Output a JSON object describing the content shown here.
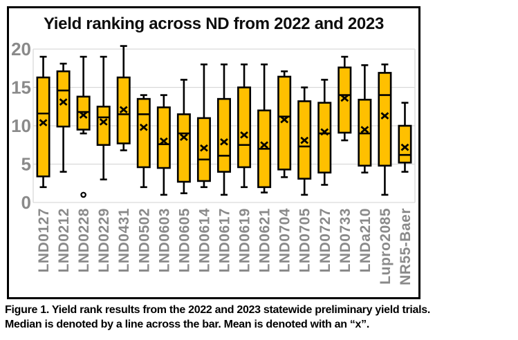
{
  "figure": {
    "caption_line1": "Figure 1. Yield rank results from the 2022 and 2023 statewide preliminary yield trials.",
    "caption_line2": "Median is denoted by a line across the bar. Mean is denoted with an “x”."
  },
  "chart_data": {
    "type": "boxplot",
    "title": "Yield ranking across ND from 2022 and 2023",
    "xlabel": "",
    "ylabel": "",
    "ylim": [
      0,
      20
    ],
    "yticks": [
      0,
      5,
      10,
      15,
      20
    ],
    "grid": true,
    "legend": "none",
    "colors": {
      "box_fill": "#FFC000",
      "box_stroke": "#000000",
      "grid": "#D9D9D9",
      "tick_label": "#8A8A8A",
      "title": "#0D0D0D"
    },
    "categories": [
      "LND0127",
      "LND0212",
      "LND0228",
      "LND0229",
      "LND0431",
      "LND0502",
      "LND0603",
      "LND0605",
      "LND0614",
      "LND0617",
      "LND0619",
      "LND0621",
      "LND0704",
      "LND0705",
      "LND0727",
      "LND0733",
      "LNDa210",
      "Lupro2085",
      "NR55-Baer"
    ],
    "series": [
      {
        "name": "LND0127",
        "whisker_low": 2.0,
        "q1": 3.4,
        "median": 11.6,
        "mean": 10.4,
        "q3": 16.3,
        "whisker_high": 19.0,
        "outliers": []
      },
      {
        "name": "LND0212",
        "whisker_low": 4.0,
        "q1": 9.9,
        "median": 14.6,
        "mean": 13.1,
        "q3": 17.1,
        "whisker_high": 18.1,
        "outliers": []
      },
      {
        "name": "LND0228",
        "whisker_low": 9.0,
        "q1": 9.5,
        "median": 11.8,
        "mean": 11.4,
        "q3": 13.8,
        "whisker_high": 19.0,
        "outliers": [
          1.0
        ]
      },
      {
        "name": "LND0229",
        "whisker_low": 3.0,
        "q1": 7.5,
        "median": 11.1,
        "mean": 10.5,
        "q3": 12.5,
        "whisker_high": 19.0,
        "outliers": []
      },
      {
        "name": "LND0431",
        "whisker_low": 6.8,
        "q1": 7.7,
        "median": 11.5,
        "mean": 12.1,
        "q3": 16.3,
        "whisker_high": 20.4,
        "outliers": []
      },
      {
        "name": "LND0502",
        "whisker_low": 2.0,
        "q1": 4.6,
        "median": 11.5,
        "mean": 9.8,
        "q3": 13.5,
        "whisker_high": 14.0,
        "outliers": []
      },
      {
        "name": "LND0603",
        "whisker_low": 1.0,
        "q1": 4.5,
        "median": 7.6,
        "mean": 8.0,
        "q3": 12.4,
        "whisker_high": 14.0,
        "outliers": []
      },
      {
        "name": "LND0605",
        "whisker_low": 1.2,
        "q1": 2.7,
        "median": 9.0,
        "mean": 8.5,
        "q3": 11.5,
        "whisker_high": 16.0,
        "outliers": []
      },
      {
        "name": "LND0614",
        "whisker_low": 2.0,
        "q1": 2.8,
        "median": 5.6,
        "mean": 7.1,
        "q3": 11.0,
        "whisker_high": 18.0,
        "outliers": []
      },
      {
        "name": "LND0617",
        "whisker_low": 1.0,
        "q1": 4.0,
        "median": 6.1,
        "mean": 7.9,
        "q3": 13.5,
        "whisker_high": 18.0,
        "outliers": []
      },
      {
        "name": "LND0619",
        "whisker_low": 2.0,
        "q1": 4.6,
        "median": 7.5,
        "mean": 8.8,
        "q3": 15.0,
        "whisker_high": 18.0,
        "outliers": []
      },
      {
        "name": "LND0621",
        "whisker_low": 1.3,
        "q1": 2.0,
        "median": 7.0,
        "mean": 7.5,
        "q3": 12.0,
        "whisker_high": 18.0,
        "outliers": []
      },
      {
        "name": "LND0704",
        "whisker_low": 3.3,
        "q1": 4.3,
        "median": 11.2,
        "mean": 10.8,
        "q3": 16.4,
        "whisker_high": 17.1,
        "outliers": []
      },
      {
        "name": "LND0705",
        "whisker_low": 1.0,
        "q1": 3.1,
        "median": 7.3,
        "mean": 8.1,
        "q3": 13.2,
        "whisker_high": 15.0,
        "outliers": []
      },
      {
        "name": "LND0727",
        "whisker_low": 2.3,
        "q1": 3.9,
        "median": 9.0,
        "mean": 9.2,
        "q3": 13.0,
        "whisker_high": 16.0,
        "outliers": []
      },
      {
        "name": "LND0733",
        "whisker_low": 8.1,
        "q1": 9.1,
        "median": 14.0,
        "mean": 13.6,
        "q3": 17.6,
        "whisker_high": 19.0,
        "outliers": []
      },
      {
        "name": "LNDa210",
        "whisker_low": 3.9,
        "q1": 4.8,
        "median": 9.0,
        "mean": 9.5,
        "q3": 13.4,
        "whisker_high": 17.9,
        "outliers": []
      },
      {
        "name": "Lupro2085",
        "whisker_low": 1.0,
        "q1": 4.8,
        "median": 14.0,
        "mean": 11.3,
        "q3": 16.9,
        "whisker_high": 18.0,
        "outliers": []
      },
      {
        "name": "NR55-Baer",
        "whisker_low": 4.0,
        "q1": 5.2,
        "median": 6.2,
        "mean": 7.2,
        "q3": 10.0,
        "whisker_high": 13.0,
        "outliers": []
      }
    ]
  }
}
